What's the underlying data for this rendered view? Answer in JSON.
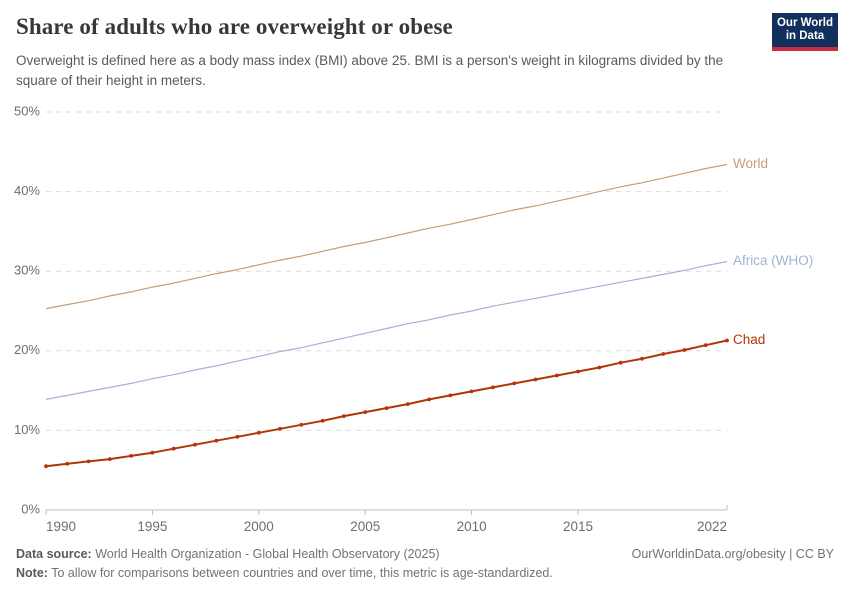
{
  "header": {
    "title": "Share of adults who are overweight or obese",
    "subtitle": "Overweight is defined here as a body mass index (BMI) above 25. BMI is a person's weight in kilograms divided by the square of their height in meters.",
    "logo": {
      "line1": "Our World",
      "line2": "in Data",
      "bg_color": "#12305e",
      "stripe_color": "#c62f41"
    }
  },
  "chart_data": {
    "type": "line",
    "title": "Share of adults who are overweight or obese",
    "xlabel": "",
    "ylabel": "",
    "grid": "horizontal-dashed",
    "legend_position": "right-edge-line-labels",
    "ylim": [
      0,
      50
    ],
    "yticks": [
      0,
      10,
      20,
      30,
      40,
      50
    ],
    "ytick_suffix": "%",
    "xticks": [
      1990,
      1995,
      2000,
      2005,
      2010,
      2015,
      2022
    ],
    "x": [
      1990,
      1991,
      1992,
      1993,
      1994,
      1995,
      1996,
      1997,
      1998,
      1999,
      2000,
      2001,
      2002,
      2003,
      2004,
      2005,
      2006,
      2007,
      2008,
      2009,
      2010,
      2011,
      2012,
      2013,
      2014,
      2015,
      2016,
      2017,
      2018,
      2019,
      2020,
      2021,
      2022
    ],
    "series": [
      {
        "name": "World",
        "color": "#c59e77",
        "marker": false,
        "values": [
          25.3,
          25.8,
          26.3,
          26.9,
          27.4,
          28.0,
          28.5,
          29.1,
          29.7,
          30.2,
          30.8,
          31.4,
          31.9,
          32.5,
          33.1,
          33.6,
          34.2,
          34.8,
          35.4,
          35.9,
          36.5,
          37.1,
          37.7,
          38.2,
          38.8,
          39.4,
          40.0,
          40.6,
          41.1,
          41.7,
          42.3,
          42.9,
          43.4
        ]
      },
      {
        "name": "Africa (WHO)",
        "color": "#a3b3d3",
        "marker": false,
        "values": [
          13.9,
          14.4,
          14.9,
          15.4,
          15.9,
          16.5,
          17.0,
          17.6,
          18.1,
          18.7,
          19.3,
          19.9,
          20.4,
          21.0,
          21.6,
          22.2,
          22.8,
          23.4,
          23.9,
          24.5,
          25.0,
          25.6,
          26.1,
          26.6,
          27.1,
          27.6,
          28.1,
          28.6,
          29.1,
          29.6,
          30.1,
          30.7,
          31.2
        ]
      },
      {
        "name": "Chad",
        "color": "#b13507",
        "marker": true,
        "values": [
          5.5,
          5.8,
          6.1,
          6.4,
          6.8,
          7.2,
          7.7,
          8.2,
          8.7,
          9.2,
          9.7,
          10.2,
          10.7,
          11.2,
          11.8,
          12.3,
          12.8,
          13.3,
          13.9,
          14.4,
          14.9,
          15.4,
          15.9,
          16.4,
          16.9,
          17.4,
          17.9,
          18.5,
          19.0,
          19.6,
          20.1,
          20.7,
          21.3
        ]
      }
    ]
  },
  "footer": {
    "data_source_label": "Data source:",
    "data_source_text": " World Health Organization - Global Health Observatory (2025)",
    "cc_text": "OurWorldinData.org/obesity | CC BY",
    "note_label": "Note:",
    "note_text": " To allow for comparisons between countries and over time, this metric is age-standardized."
  }
}
